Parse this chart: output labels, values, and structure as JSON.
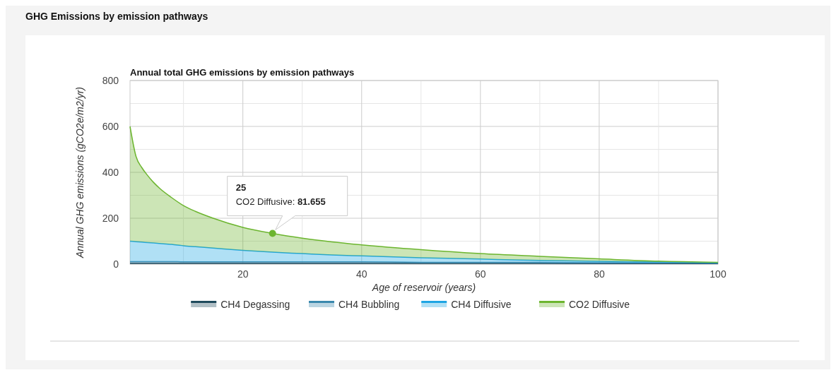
{
  "chart_data": {
    "type": "area",
    "stacked": true,
    "title": "GHG Emissions by emission pathways",
    "subtitle": "Annual total GHG emissions by emission pathways",
    "xlabel": "Age of reservoir (years)",
    "ylabel": "Annual GHG emissions (gCO2e/m2/yr)",
    "x": [
      1,
      2,
      3,
      4,
      5,
      6,
      8,
      10,
      12,
      15,
      20,
      25,
      30,
      35,
      40,
      50,
      60,
      70,
      80,
      90,
      100
    ],
    "series": [
      {
        "name": "CH4 Degassing",
        "color": "#1f4a5c",
        "values": [
          4,
          4,
          4,
          4,
          4,
          4,
          4,
          4,
          4,
          4,
          4,
          4,
          4,
          4,
          4,
          3,
          3,
          3,
          2,
          2,
          2
        ]
      },
      {
        "name": "CH4 Bubbling",
        "color": "#3a88ad",
        "values": [
          7,
          7,
          7,
          7,
          7,
          7,
          7,
          6,
          6,
          6,
          6,
          6,
          6,
          6,
          6,
          5,
          5,
          5,
          4,
          4,
          3
        ]
      },
      {
        "name": "CH4 Diffusive",
        "color": "#1ea5e3",
        "values": [
          89,
          87,
          85,
          83,
          81,
          79,
          75,
          70,
          66,
          60,
          50,
          42,
          36,
          30,
          26,
          20,
          14,
          8,
          6,
          3,
          1
        ]
      },
      {
        "name": "CO2 Diffusive",
        "color": "#6cb52f",
        "values": [
          500,
          372,
          324,
          291,
          263,
          240,
          204,
          175,
          154,
          130,
          100,
          81.655,
          67,
          57,
          48,
          35,
          24,
          18,
          11,
          4,
          2
        ]
      }
    ],
    "xlim": [
      1,
      100
    ],
    "xticks": [
      {
        "value": 10,
        "label": null
      },
      20,
      {
        "value": 30,
        "label": null
      },
      40,
      {
        "value": 50,
        "label": null
      },
      60,
      {
        "value": 70,
        "label": null
      },
      80,
      {
        "value": 90,
        "label": null
      },
      100
    ],
    "ylim": [
      0,
      800
    ],
    "yticks": [
      0,
      {
        "value": 100,
        "label": null
      },
      200,
      {
        "value": 300,
        "label": null
      },
      400,
      {
        "value": 500,
        "label": null
      },
      600,
      {
        "value": 700,
        "label": null
      },
      800
    ],
    "grid": true,
    "legend": "bottom",
    "marker": "none",
    "annotations": [
      {
        "text": "25\nCO2 Diffusive: 81.655",
        "x": 25,
        "y": 133.655
      }
    ]
  }
}
